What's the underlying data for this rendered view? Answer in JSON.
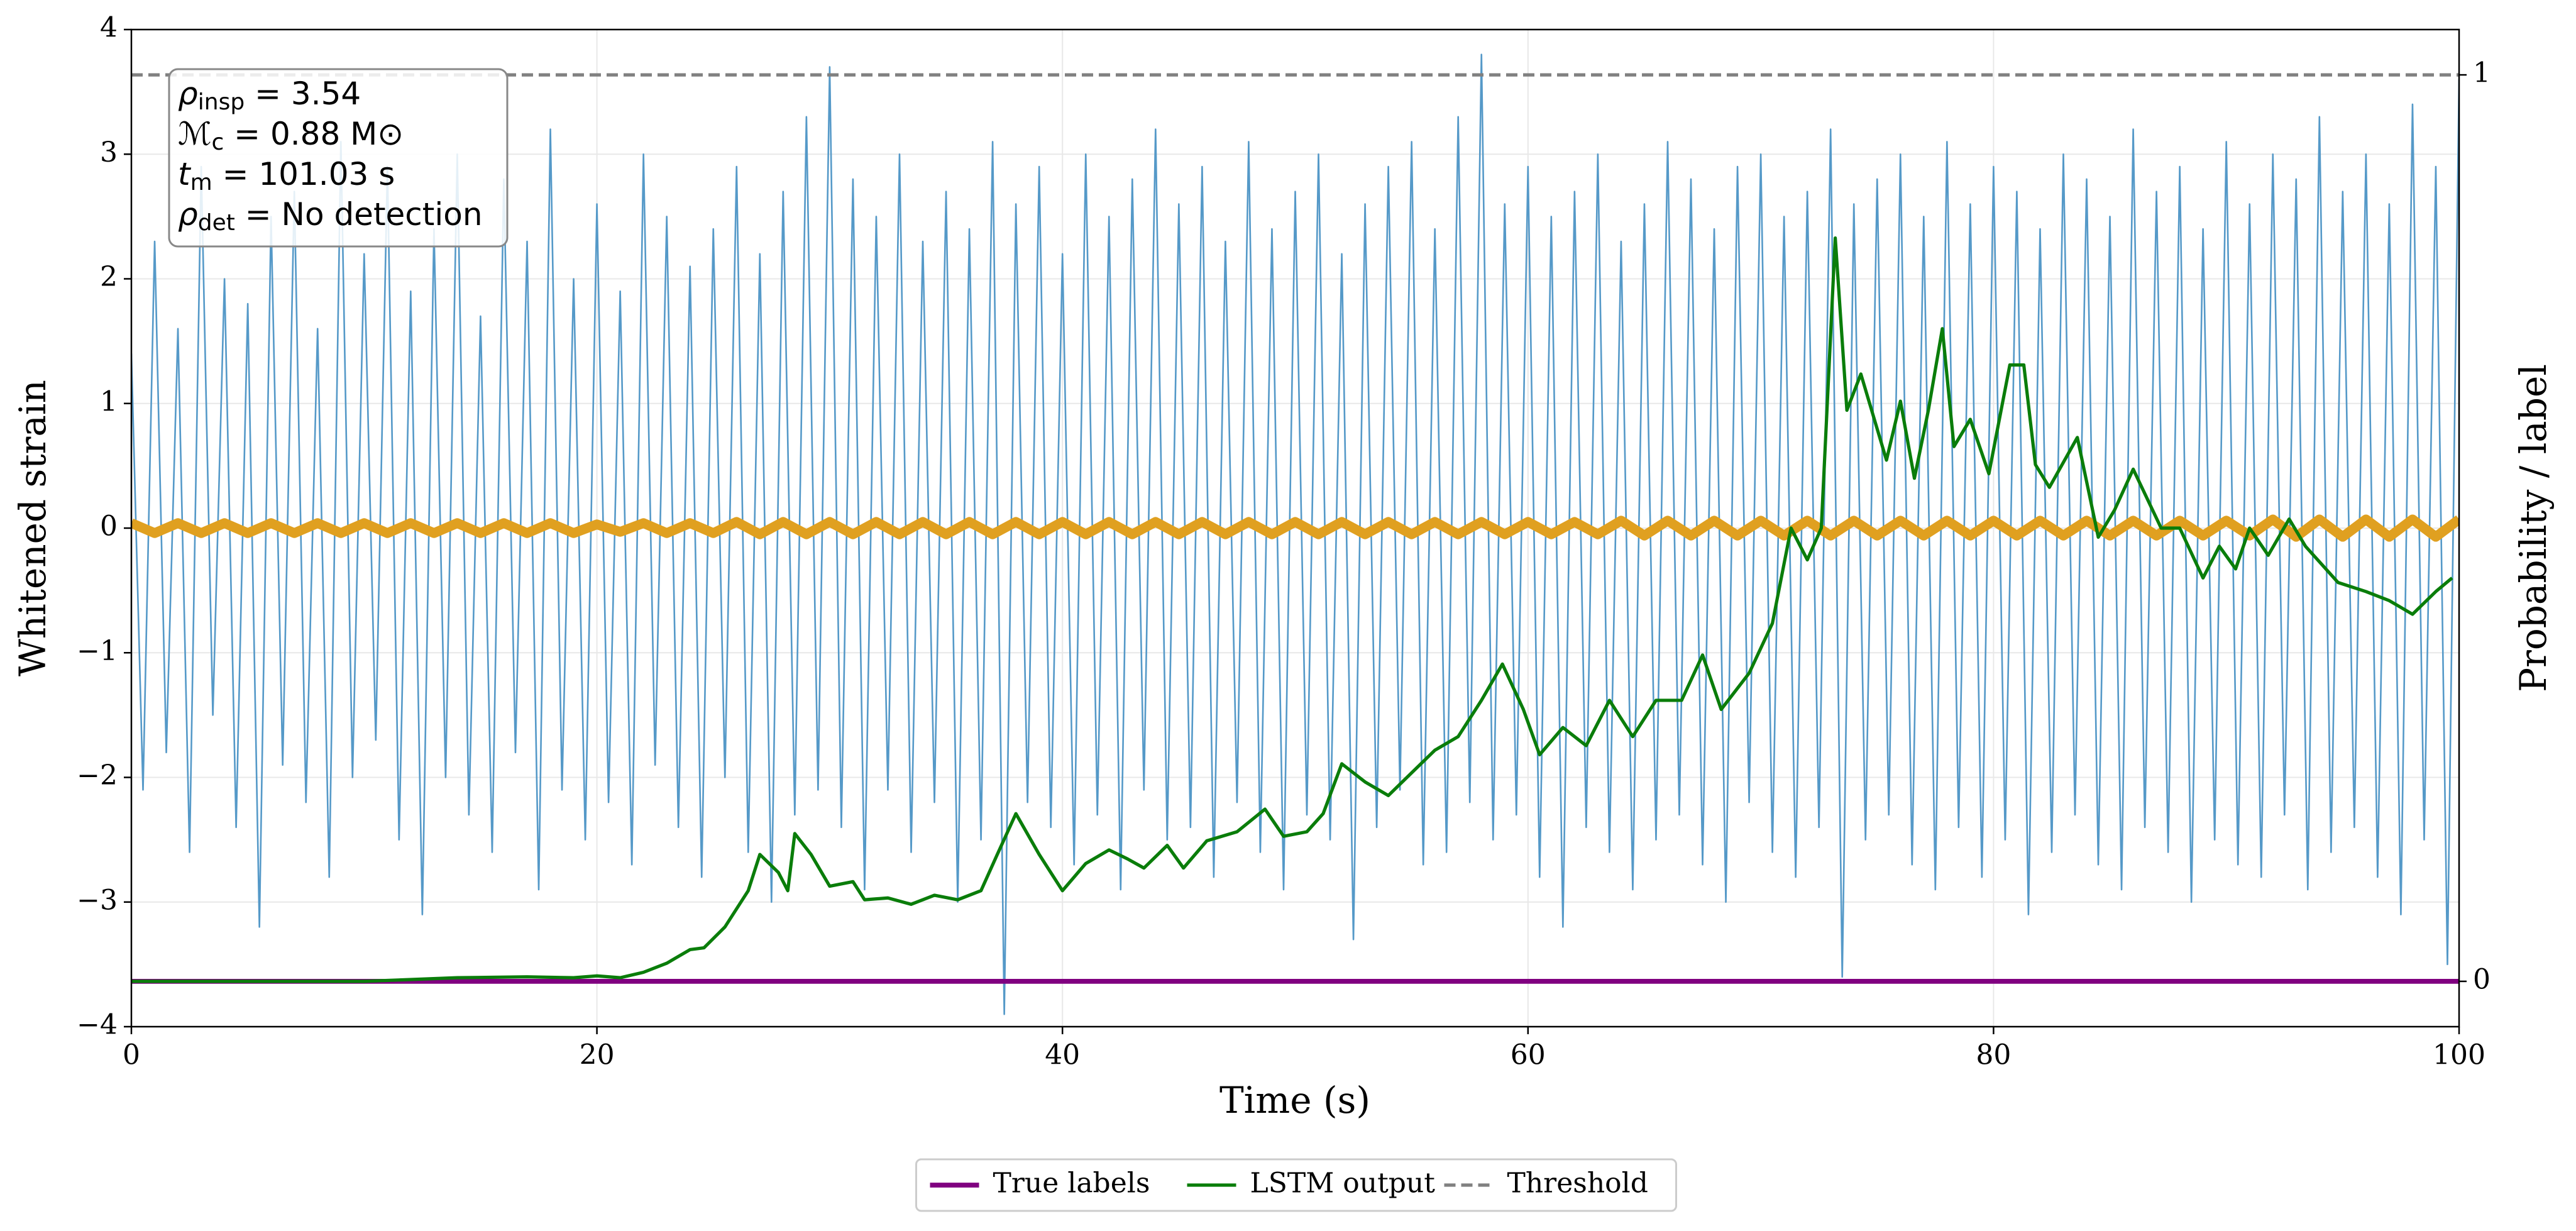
{
  "chart_data": {
    "type": "line",
    "xlabel": "Time (s)",
    "ylabel": "Whitened strain",
    "y2label": "Probability / label",
    "xlim": [
      0,
      100
    ],
    "xticks": [
      0,
      20,
      40,
      60,
      80,
      100
    ],
    "ylim": [
      -4,
      4
    ],
    "yticks": [
      {
        "value": -4,
        "label": "−4"
      },
      {
        "value": -3,
        "label": "−3"
      },
      {
        "value": -2,
        "label": "−2"
      },
      {
        "value": -1,
        "label": "−1"
      },
      0,
      1,
      2,
      3,
      4
    ],
    "y2lim": [
      -0.05,
      1.05
    ],
    "y2ticks": [
      0,
      1
    ],
    "grid": true,
    "legend": "bottom",
    "annotations": [
      {
        "symbol": "ρ",
        "sub": "insp",
        "text": " = 3.54"
      },
      {
        "symbol": "ℳ",
        "sub": "c",
        "text": " = 0.88 M⊙"
      },
      {
        "symbol": "t",
        "sub": "m",
        "text": " = 101.03 s"
      },
      {
        "symbol": "ρ",
        "sub": "det",
        "text": " = No detection"
      }
    ],
    "series": [
      {
        "color": "#5599c8",
        "width": 1,
        "x": [
          0,
          0.5,
          1,
          1.5,
          2,
          2.5,
          3,
          3.5,
          4,
          4.5,
          5,
          5.5,
          6,
          6.5,
          7,
          7.5,
          8,
          8.5,
          9,
          9.5,
          10,
          10.5,
          11,
          11.5,
          12,
          12.5,
          13,
          13.5,
          14,
          14.5,
          15,
          15.5,
          16,
          16.5,
          17,
          17.5,
          18,
          18.5,
          19,
          19.5,
          20,
          20.5,
          21,
          21.5,
          22,
          22.5,
          23,
          23.5,
          24,
          24.5,
          25,
          25.5,
          26,
          26.5,
          27,
          27.5,
          28,
          28.5,
          29,
          29.5,
          30,
          30.5,
          31,
          31.5,
          32,
          32.5,
          33,
          33.5,
          34,
          34.5,
          35,
          35.5,
          36,
          36.5,
          37,
          37.5,
          38,
          38.5,
          39,
          39.5,
          40,
          40.5,
          41,
          41.5,
          42,
          42.5,
          43,
          43.5,
          44,
          44.5,
          45,
          45.5,
          46,
          46.5,
          47,
          47.5,
          48,
          48.5,
          49,
          49.5,
          50,
          50.5,
          51,
          51.5,
          52,
          52.5,
          53,
          53.5,
          54,
          54.5,
          55,
          55.5,
          56,
          56.5,
          57,
          57.5,
          58,
          58.5,
          59,
          59.5,
          60,
          60.5,
          61,
          61.5,
          62,
          62.5,
          63,
          63.5,
          64,
          64.5,
          65,
          65.5,
          66,
          66.5,
          67,
          67.5,
          68,
          68.5,
          69,
          69.5,
          70,
          70.5,
          71,
          71.5,
          72,
          72.5,
          73,
          73.5,
          74,
          74.5,
          75,
          75.5,
          76,
          76.5,
          77,
          77.5,
          78,
          78.5,
          79,
          79.5,
          80,
          80.5,
          81,
          81.5,
          82,
          82.5,
          83,
          83.5,
          84,
          84.5,
          85,
          85.5,
          86,
          86.5,
          87,
          87.5,
          88,
          88.5,
          89,
          89.5,
          90,
          90.5,
          91,
          91.5,
          92,
          92.5,
          93,
          93.5,
          94,
          94.5,
          95,
          95.5,
          96,
          96.5,
          97,
          97.5,
          98,
          98.5,
          99,
          99.5,
          100
        ],
        "values": [
          1.4,
          -2.1,
          2.3,
          -1.8,
          1.6,
          -2.6,
          2.9,
          -1.5,
          2.0,
          -2.4,
          1.8,
          -3.2,
          2.5,
          -1.9,
          2.7,
          -2.2,
          1.6,
          -2.8,
          3.1,
          -2.0,
          2.2,
          -1.7,
          2.9,
          -2.5,
          1.9,
          -3.1,
          2.4,
          -2.0,
          3.0,
          -2.3,
          1.7,
          -2.6,
          2.8,
          -1.8,
          2.3,
          -2.9,
          3.2,
          -2.1,
          2.0,
          -2.5,
          2.6,
          -2.2,
          1.9,
          -2.7,
          3.0,
          -1.9,
          2.5,
          -2.4,
          2.1,
          -2.8,
          2.4,
          -2.0,
          2.9,
          -2.6,
          2.2,
          -3.0,
          2.7,
          -2.3,
          3.3,
          -2.1,
          3.7,
          -2.4,
          2.8,
          -2.9,
          2.5,
          -2.1,
          3.0,
          -2.6,
          2.3,
          -2.2,
          2.7,
          -3.0,
          2.4,
          -2.5,
          3.1,
          -3.9,
          2.6,
          -2.2,
          2.9,
          -2.4,
          2.2,
          -2.7,
          3.0,
          -2.3,
          2.5,
          -2.9,
          2.8,
          -2.1,
          3.2,
          -2.5,
          2.6,
          -2.4,
          2.9,
          -2.8,
          2.3,
          -2.2,
          3.1,
          -2.6,
          2.4,
          -2.9,
          2.7,
          -2.3,
          3.0,
          -2.5,
          2.2,
          -3.3,
          2.6,
          -2.4,
          2.9,
          -2.1,
          3.1,
          -2.7,
          2.4,
          -2.6,
          3.3,
          -2.2,
          3.8,
          -2.5,
          2.6,
          -2.3,
          2.9,
          -2.8,
          2.5,
          -3.2,
          2.7,
          -2.4,
          3.0,
          -2.6,
          2.3,
          -2.9,
          2.6,
          -2.5,
          3.1,
          -2.3,
          2.8,
          -2.7,
          2.4,
          -3.0,
          2.9,
          -2.2,
          3.0,
          -2.6,
          2.5,
          -2.8,
          2.7,
          -2.4,
          3.2,
          -3.6,
          2.6,
          -2.5,
          2.8,
          -2.3,
          3.0,
          -2.7,
          2.5,
          -2.9,
          3.1,
          -2.4,
          2.6,
          -2.8,
          2.9,
          -2.5,
          2.7,
          -3.1,
          2.4,
          -2.6,
          3.0,
          -2.3,
          2.8,
          -2.7,
          2.5,
          -2.9,
          3.2,
          -2.4,
          2.7,
          -2.6,
          2.9,
          -3.0,
          2.4,
          -2.5,
          3.1,
          -2.7,
          2.6,
          -2.8,
          3.0,
          -2.3,
          2.8,
          -2.9,
          3.3,
          -2.6,
          2.7,
          -2.4,
          3.0,
          -2.8,
          2.6,
          -3.1,
          3.4,
          -2.5,
          2.9,
          -3.5,
          3.6
        ]
      },
      {
        "color": "#e0a020",
        "width": 6,
        "x": [
          0,
          1,
          2,
          3,
          4,
          5,
          6,
          7,
          8,
          9,
          10,
          11,
          12,
          13,
          14,
          15,
          16,
          17,
          18,
          19,
          20,
          21,
          22,
          23,
          24,
          25,
          26,
          27,
          28,
          29,
          30,
          31,
          32,
          33,
          34,
          35,
          36,
          37,
          38,
          39,
          40,
          41,
          42,
          43,
          44,
          45,
          46,
          47,
          48,
          49,
          50,
          51,
          52,
          53,
          54,
          55,
          56,
          57,
          58,
          59,
          60,
          61,
          62,
          63,
          64,
          65,
          66,
          67,
          68,
          69,
          70,
          71,
          72,
          73,
          74,
          75,
          76,
          77,
          78,
          79,
          80,
          81,
          82,
          83,
          84,
          85,
          86,
          87,
          88,
          89,
          90,
          91,
          92,
          93,
          94,
          95,
          96,
          97,
          98,
          99,
          100
        ],
        "values": [
          0.04,
          -0.04,
          0.04,
          -0.04,
          0.04,
          -0.04,
          0.04,
          -0.04,
          0.04,
          -0.04,
          0.04,
          -0.04,
          0.04,
          -0.04,
          0.04,
          -0.04,
          0.04,
          -0.04,
          0.04,
          -0.04,
          0.03,
          -0.03,
          0.04,
          -0.04,
          0.04,
          -0.04,
          0.05,
          -0.05,
          0.05,
          -0.05,
          0.05,
          -0.05,
          0.05,
          -0.05,
          0.05,
          -0.05,
          0.05,
          -0.05,
          0.05,
          -0.05,
          0.05,
          -0.05,
          0.05,
          -0.05,
          0.05,
          -0.05,
          0.05,
          -0.05,
          0.05,
          -0.05,
          0.05,
          -0.05,
          0.05,
          -0.05,
          0.05,
          -0.05,
          0.05,
          -0.05,
          0.05,
          -0.05,
          0.05,
          -0.05,
          0.05,
          -0.05,
          0.06,
          -0.06,
          0.06,
          -0.06,
          0.06,
          -0.06,
          0.06,
          -0.06,
          0.06,
          -0.06,
          0.06,
          -0.06,
          0.06,
          -0.06,
          0.06,
          -0.06,
          0.06,
          -0.06,
          0.06,
          -0.06,
          0.06,
          -0.06,
          0.06,
          -0.06,
          0.06,
          -0.06,
          0.06,
          -0.06,
          0.07,
          -0.07,
          0.07,
          -0.07,
          0.07,
          -0.07,
          0.07,
          -0.07,
          0.07
        ]
      },
      {
        "name": "True labels",
        "color": "#800080",
        "width": 3,
        "axis": "y2",
        "x": [
          0,
          100
        ],
        "values": [
          0,
          0
        ]
      },
      {
        "name": "LSTM output",
        "color": "#0a7d0a",
        "width": 2,
        "axis": "y2",
        "x": [
          0,
          10,
          14,
          17,
          19,
          20,
          21,
          22,
          23,
          24,
          24.6,
          25.5,
          26.5,
          27,
          27.8,
          28.2,
          28.5,
          29.2,
          30,
          31,
          31.5,
          32.5,
          33.5,
          34.5,
          35.5,
          36.5,
          37.2,
          38,
          39,
          40,
          41,
          42,
          42.8,
          43.5,
          44.5,
          45.2,
          46.2,
          47.5,
          48.7,
          49.5,
          50.5,
          51.2,
          52,
          53,
          54,
          55,
          56,
          57,
          58,
          58.9,
          59.8,
          60.5,
          61.5,
          62.5,
          63.5,
          64.5,
          65.5,
          66.6,
          67.5,
          68.3,
          69.5,
          70.5,
          71.3,
          72,
          72.6,
          73.2,
          73.7,
          74.3,
          75.4,
          76,
          76.6,
          77.2,
          77.8,
          78.3,
          79,
          79.8,
          80.7,
          81.3,
          81.8,
          82.4,
          83.6,
          84.5,
          85.2,
          86,
          87.2,
          88,
          89,
          89.7,
          90.4,
          91,
          91.8,
          92.7,
          93.4,
          94.8,
          96,
          97,
          98,
          99,
          99.7
        ],
        "values": [
          0,
          0,
          0.004,
          0.005,
          0.004,
          0.006,
          0.004,
          0.01,
          0.02,
          0.035,
          0.037,
          0.06,
          0.1,
          0.14,
          0.12,
          0.1,
          0.163,
          0.14,
          0.105,
          0.11,
          0.09,
          0.092,
          0.085,
          0.095,
          0.09,
          0.1,
          0.14,
          0.185,
          0.14,
          0.1,
          0.13,
          0.145,
          0.135,
          0.125,
          0.15,
          0.125,
          0.155,
          0.165,
          0.19,
          0.16,
          0.165,
          0.185,
          0.24,
          0.22,
          0.205,
          0.23,
          0.255,
          0.27,
          0.31,
          0.35,
          0.3,
          0.25,
          0.28,
          0.26,
          0.31,
          0.27,
          0.31,
          0.31,
          0.36,
          0.3,
          0.34,
          0.395,
          0.5,
          0.465,
          0.5,
          0.82,
          0.63,
          0.67,
          0.575,
          0.64,
          0.555,
          0.63,
          0.72,
          0.59,
          0.62,
          0.56,
          0.68,
          0.68,
          0.57,
          0.545,
          0.6,
          0.49,
          0.52,
          0.565,
          0.5,
          0.5,
          0.445,
          0.48,
          0.455,
          0.5,
          0.47,
          0.51,
          0.48,
          0.44,
          0.43,
          0.42,
          0.405,
          0.43,
          0.445
        ]
      },
      {
        "name": "Threshold",
        "color": "#808080",
        "width": 2,
        "dash": true,
        "axis": "y2",
        "x": [
          0,
          100
        ],
        "values": [
          1,
          1
        ]
      }
    ]
  }
}
